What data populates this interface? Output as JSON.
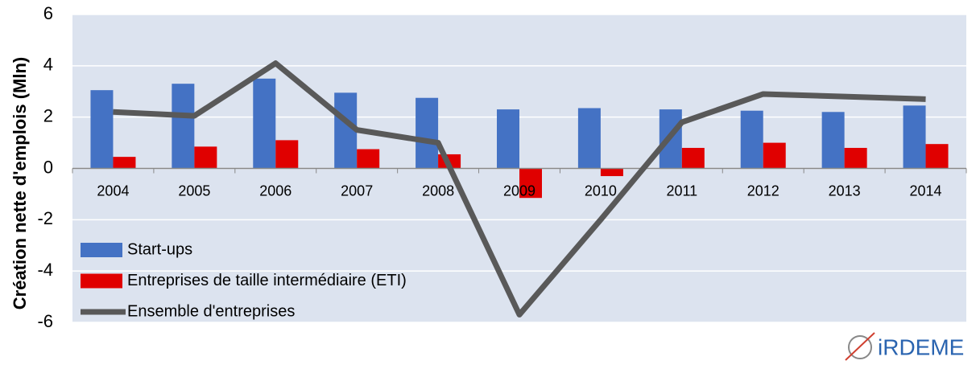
{
  "chart_data": {
    "type": "bar-line",
    "y_label": "Création nette d'emplois (Mln)",
    "categories": [
      "2004",
      "2005",
      "2006",
      "2007",
      "2008",
      "2009",
      "2010",
      "2011",
      "2012",
      "2013",
      "2014"
    ],
    "series": [
      {
        "name": "Start-ups",
        "type": "bar",
        "color": "#4472c4",
        "values": [
          3.05,
          3.3,
          3.5,
          2.95,
          2.75,
          2.3,
          2.35,
          2.3,
          2.25,
          2.2,
          2.45
        ]
      },
      {
        "name": "Entreprises de taille intermédiaire (ETI)",
        "type": "bar",
        "color": "#e00000",
        "values": [
          0.45,
          0.85,
          1.1,
          0.75,
          0.55,
          -1.15,
          -0.3,
          0.8,
          1.0,
          0.8,
          0.95
        ]
      },
      {
        "name": "Ensemble d'entreprises",
        "type": "line",
        "color": "#595959",
        "values": [
          2.2,
          2.05,
          4.1,
          1.5,
          1.0,
          -5.7,
          -2.0,
          1.8,
          2.9,
          2.8,
          2.7
        ]
      }
    ],
    "ylim": [
      -6,
      6
    ],
    "yticks": [
      -6,
      -4,
      -2,
      0,
      2,
      4,
      6
    ],
    "grid": true,
    "legend": "lower-left",
    "logo": "iRDEME"
  }
}
